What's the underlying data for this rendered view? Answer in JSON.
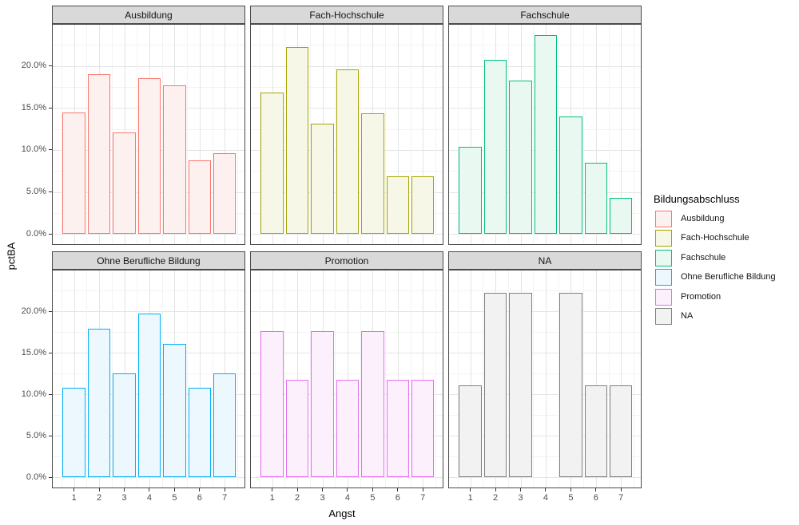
{
  "figure": {
    "x_axis_title": "Angst",
    "y_axis_title": "pctBA",
    "x_tick_labels": [
      "1",
      "2",
      "3",
      "4",
      "5",
      "6",
      "7"
    ],
    "y_tick_labels": [
      "0.0%",
      "5.0%",
      "10.0%",
      "15.0%",
      "20.0%"
    ]
  },
  "chart_data": {
    "type": "bar",
    "faceting": {
      "variable": "Bildungsabschluss",
      "rows": 2,
      "cols": 3
    },
    "x": [
      1,
      2,
      3,
      4,
      5,
      6,
      7
    ],
    "xlabel": "Angst",
    "ylabel": "pctBA",
    "ylim": [
      0,
      24.9
    ],
    "y_unit": "percent",
    "y_major_ticks_pct": [
      0,
      5,
      10,
      15,
      20
    ],
    "y_minor_ticks_pct": [
      2.5,
      7.5,
      12.5,
      17.5,
      22.5
    ],
    "grid": true,
    "legend_title": "Bildungsabschluss",
    "legend_position": "right",
    "facets": [
      {
        "name": "Ausbildung",
        "stroke": "#F8766D",
        "fill": "#FDF1F0",
        "values_pct": [
          14.5,
          19.0,
          12.1,
          18.5,
          17.7,
          8.8,
          9.6
        ]
      },
      {
        "name": "Fach-Hochschule",
        "stroke": "#A3A500",
        "fill": "#F7F7E8",
        "values_pct": [
          16.8,
          22.2,
          13.1,
          19.6,
          14.4,
          6.9,
          6.9
        ]
      },
      {
        "name": "Fachschule",
        "stroke": "#00BF7D",
        "fill": "#E9F9F2",
        "values_pct": [
          10.4,
          20.7,
          18.3,
          23.7,
          14.0,
          8.5,
          4.3
        ]
      },
      {
        "name": "Ohne Berufliche Bildung",
        "stroke": "#00B0F6",
        "fill": "#EDF8FE",
        "values_pct": [
          10.8,
          17.9,
          12.5,
          19.7,
          16.1,
          10.8,
          12.5
        ]
      },
      {
        "name": "Promotion",
        "stroke": "#E76BF3",
        "fill": "#FCF0FD",
        "values_pct": [
          17.6,
          11.8,
          17.6,
          11.8,
          17.6,
          11.8,
          11.8
        ]
      },
      {
        "name": "NA",
        "stroke": "#7F7F7F",
        "fill": "#F2F2F2",
        "values_pct": [
          11.1,
          22.2,
          22.2,
          null,
          22.2,
          11.1,
          11.1
        ]
      }
    ]
  }
}
